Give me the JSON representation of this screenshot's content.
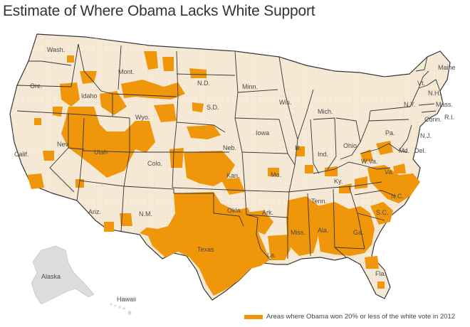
{
  "title": "Estimate of Where Obama Lacks White Support",
  "legend": {
    "label": "Areas where Obama won 20% or less of the white vote in 2012",
    "color": "#F0960A"
  },
  "colors": {
    "land": "#F6EAD6",
    "highlight": "#F0960A",
    "border": "#333333",
    "county_border": "#d9cbb0",
    "alaska": "#dcdcdc"
  },
  "state_labels": {
    "wash": "Wash.",
    "ore": "Ore.",
    "calif": "Calif.",
    "idaho": "Idaho",
    "nev": "Nev.",
    "mont": "Mont.",
    "wyo": "Wyo.",
    "utah": "Utah",
    "ariz": "Ariz.",
    "colo": "Colo.",
    "nm": "N.M.",
    "nd": "N.D.",
    "sd": "S.D.",
    "neb": "Neb.",
    "kan": "Kan.",
    "okla": "Okla.",
    "texas": "Texas",
    "minn": "Minn.",
    "iowa": "Iowa",
    "mo": "Mo.",
    "ark": "Ark.",
    "la": "La.",
    "wis": "Wis.",
    "ill": "Ill.",
    "mich": "Mich.",
    "ind": "Ind.",
    "ohio": "Ohio",
    "ky": "Ky.",
    "tenn": "Tenn.",
    "miss": "Miss.",
    "ala": "Ala.",
    "ga": "Ga.",
    "fla": "Fla.",
    "sc": "S.C.",
    "nc": "N.C.",
    "va": "Va.",
    "wva": "W.Va.",
    "pa": "Pa.",
    "ny": "N.Y.",
    "md": "Md.",
    "del": "Del.",
    "nj": "N.J.",
    "conn": "Conn.",
    "ri": "R.I.",
    "mass": "Mass.",
    "vt": "Vt.",
    "nh": "N.H.",
    "maine": "Maine",
    "alaska": "Alaska",
    "hawaii": "Hawaii"
  }
}
